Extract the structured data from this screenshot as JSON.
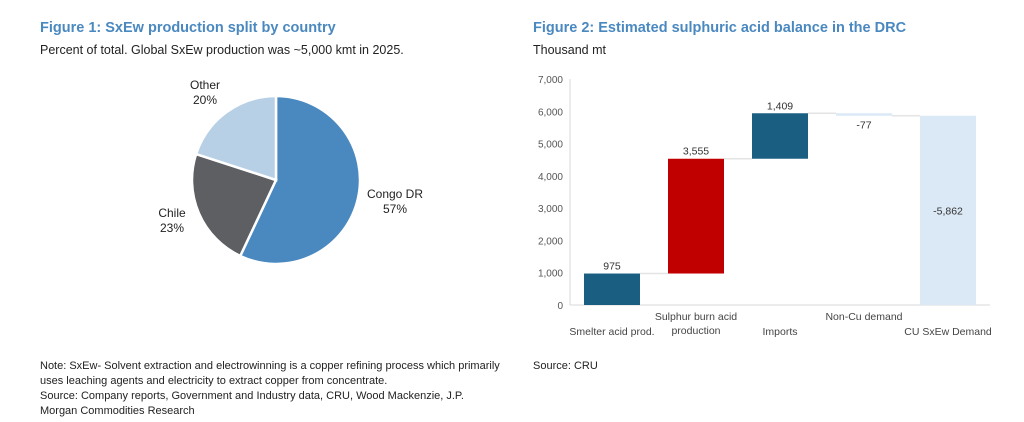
{
  "chart_data": [
    {
      "type": "pie",
      "title": "Figure 1: SxEw production split by country",
      "subtitle": "Percent of total. Global SxEw production was ~5,000 kmt in 2025.",
      "slices": [
        {
          "label": "Congo DR",
          "value": 57,
          "pct_label": "57%",
          "color": "#4a88c0"
        },
        {
          "label": "Chile",
          "value": 23,
          "pct_label": "23%",
          "color": "#5d5f63"
        },
        {
          "label": "Other",
          "value": 20,
          "pct_label": "20%",
          "color": "#b8d0e6"
        }
      ],
      "note": "Note: SxEw- Solvent extraction and electrowinning is a copper refining process which primarily uses leaching agents and electricity to extract copper from concentrate.",
      "source": "Source: Company reports, Government and Industry data, CRU, Wood Mackenzie, J.P. Morgan Commodities Research"
    },
    {
      "type": "waterfall",
      "title": "Figure 2: Estimated sulphuric acid balance in the DRC",
      "ylabel": "Thousand mt",
      "ylim": [
        0,
        7000
      ],
      "yticks": [
        "0",
        "1,000",
        "2,000",
        "3,000",
        "4,000",
        "5,000",
        "6,000",
        "7,000"
      ],
      "categories": [
        [
          "Smelter acid prod."
        ],
        [
          "Sulphur burn acid",
          "production"
        ],
        [
          "Imports"
        ],
        [
          "Non-Cu demand"
        ],
        [
          "CU SxEw Demand"
        ]
      ],
      "values": [
        975,
        3555,
        1409,
        -77,
        -5862
      ],
      "labels": [
        "975",
        "3,555",
        "1,409",
        "-77",
        "-5,862"
      ],
      "colors": [
        "#1a5f82",
        "#c00000",
        "#1a5f82",
        "#dbe8f5",
        "#dbe8f5"
      ],
      "grid": false,
      "source": "Source: CRU"
    }
  ]
}
